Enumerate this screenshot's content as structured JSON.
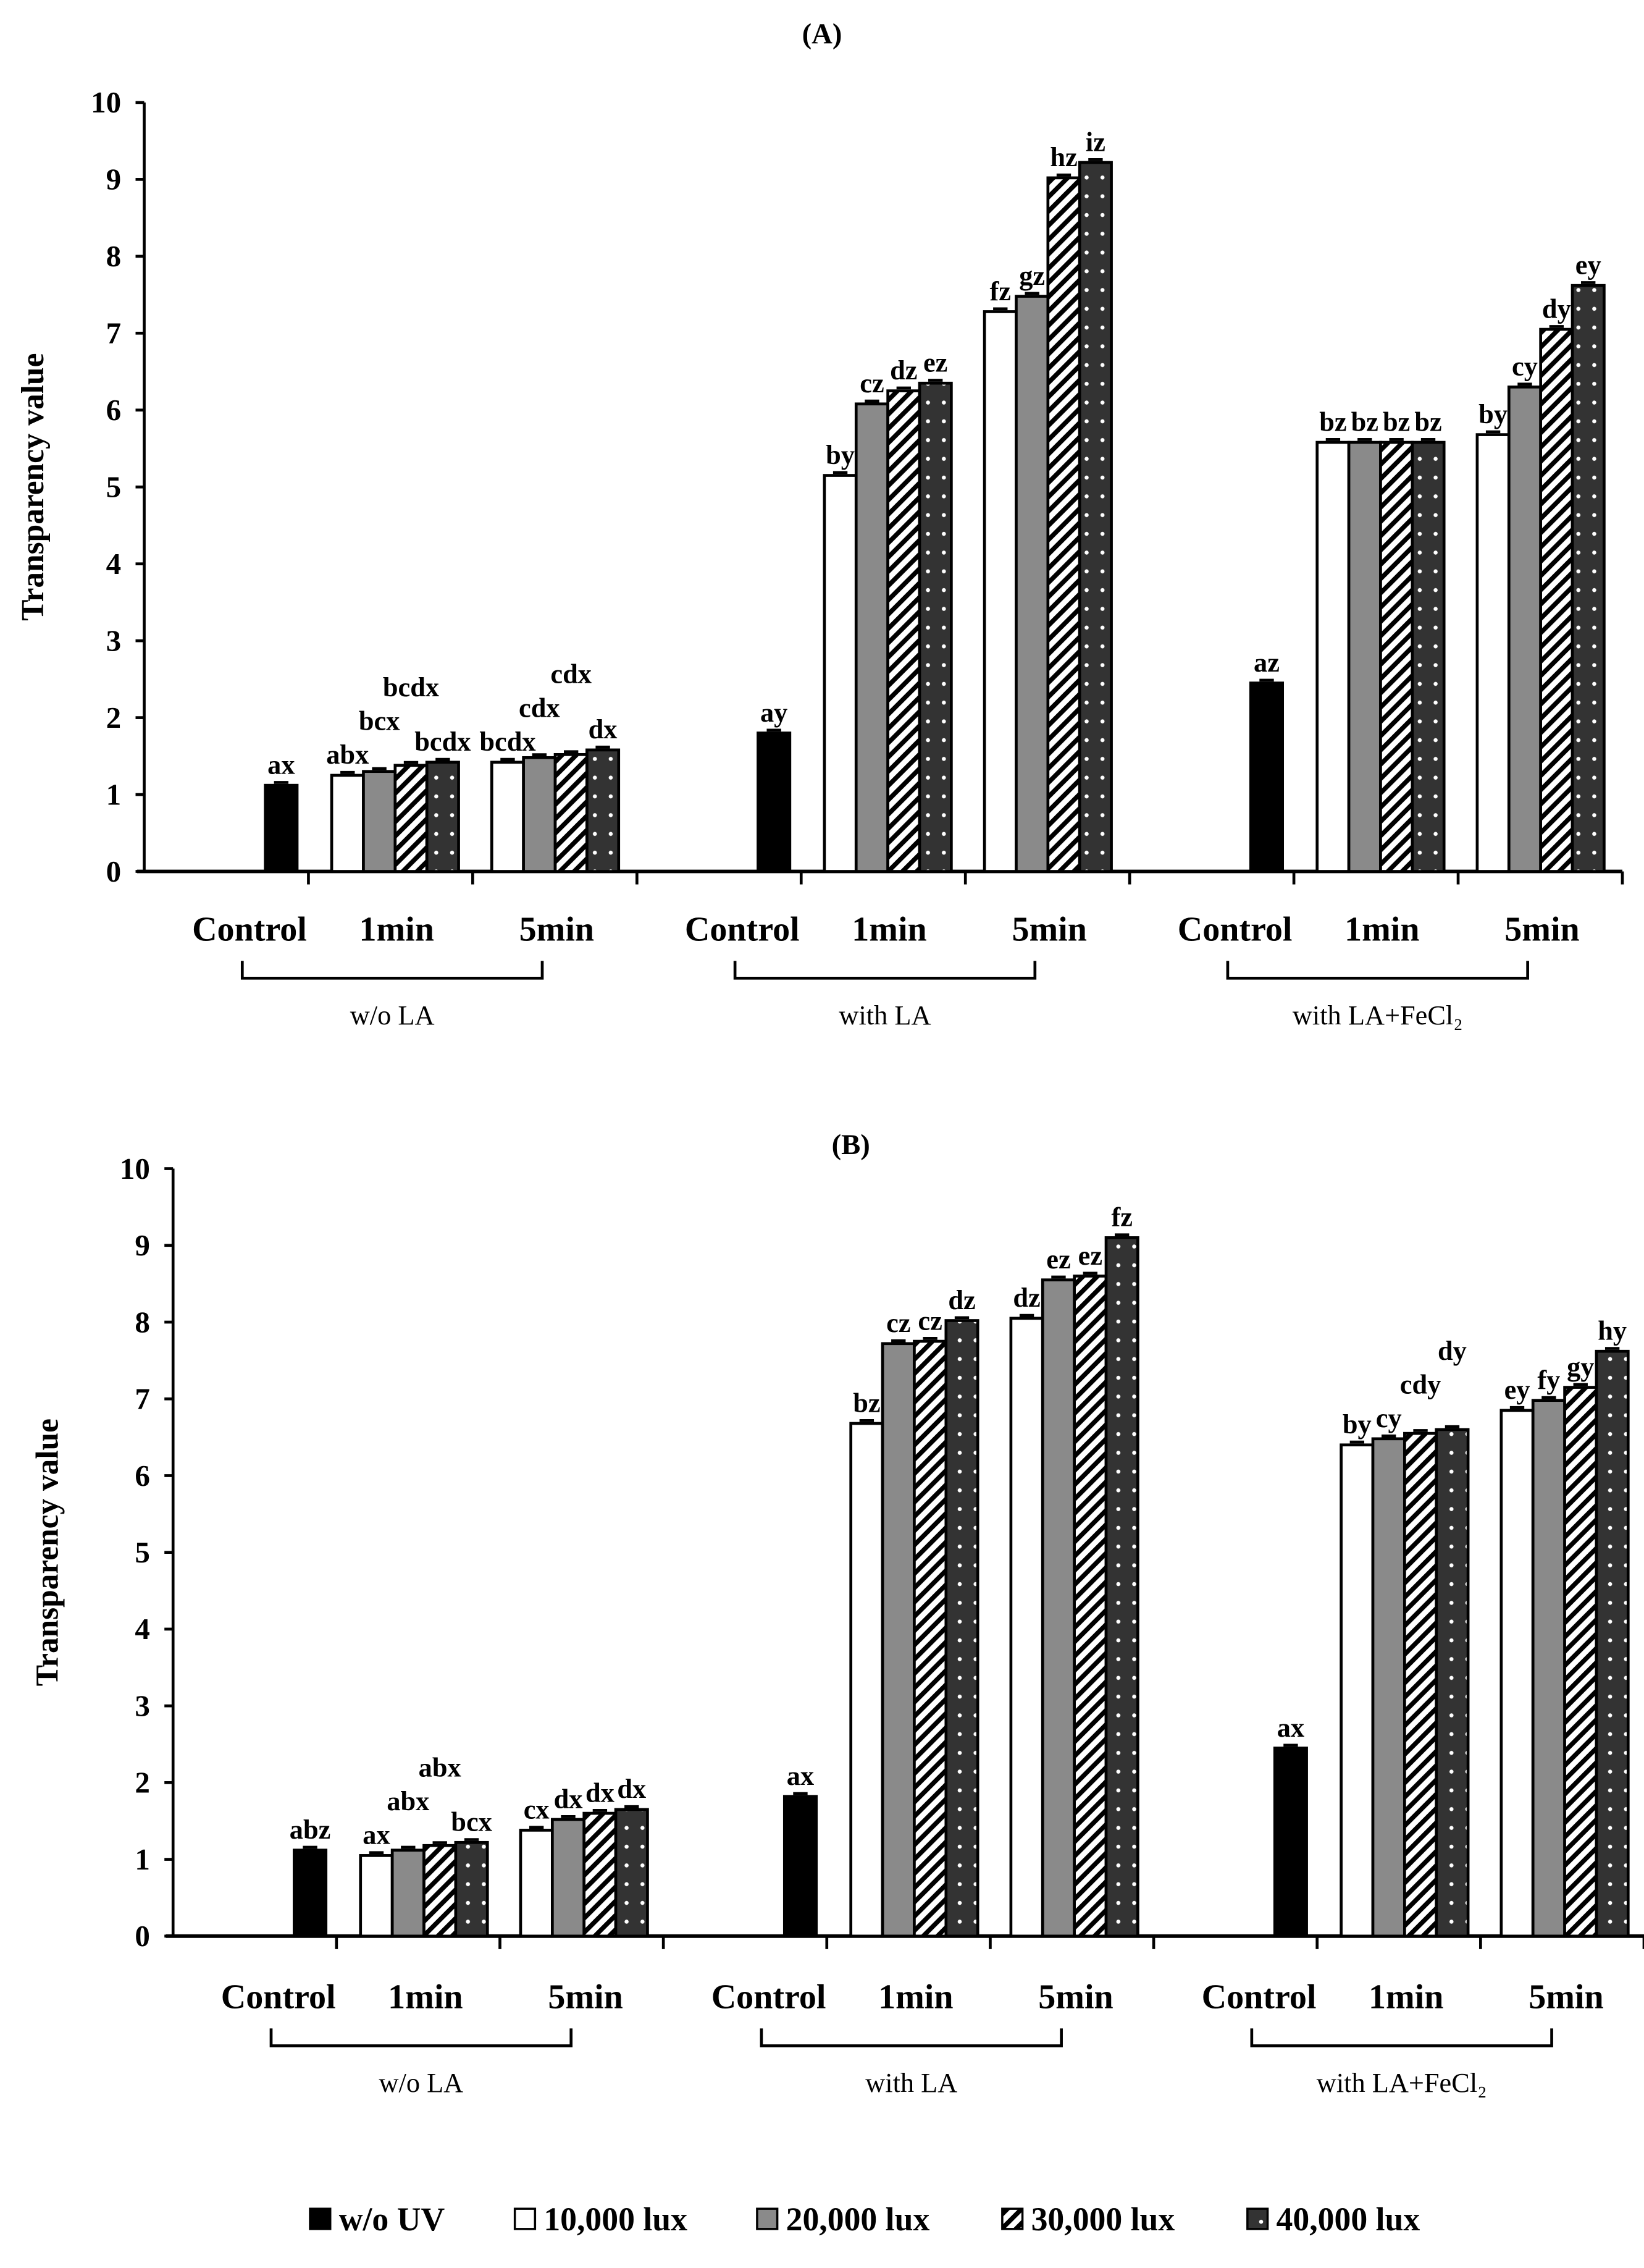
{
  "chart_data": [
    {
      "type": "bar",
      "title": "(A)",
      "ylabel": "Transparency value",
      "ylim": [
        0,
        10
      ],
      "yticks": [
        0,
        1,
        2,
        3,
        4,
        5,
        6,
        7,
        8,
        9,
        10
      ],
      "groups": [
        {
          "name": "w/o LA",
          "categories": [
            "Control",
            "1min",
            "5min"
          ],
          "control": {
            "value": 1.12,
            "label": "ax"
          },
          "1min": {
            "values": [
              1.25,
              1.3,
              1.38,
              1.42
            ],
            "labels": [
              "abx",
              "bcx",
              "bcdx",
              "bcdx"
            ]
          },
          "5min": {
            "values": [
              1.42,
              1.48,
              1.52,
              1.58
            ],
            "labels": [
              "bcdx",
              "cdx",
              "cdx",
              "dx"
            ]
          }
        },
        {
          "name": "with LA",
          "categories": [
            "Control",
            "1min",
            "5min"
          ],
          "control": {
            "value": 1.8,
            "label": "ay"
          },
          "1min": {
            "values": [
              5.15,
              6.08,
              6.25,
              6.35
            ],
            "labels": [
              "by",
              "cz",
              "dz",
              "ez"
            ]
          },
          "5min": {
            "values": [
              7.28,
              7.48,
              9.02,
              9.22
            ],
            "labels": [
              "fz",
              "gz",
              "hz",
              "iz"
            ]
          }
        },
        {
          "name": "with LA+FeCl₂",
          "categories": [
            "Control",
            "1min",
            "5min"
          ],
          "control": {
            "value": 2.45,
            "label": "az"
          },
          "1min": {
            "values": [
              5.58,
              5.58,
              5.58,
              5.58
            ],
            "labels": [
              "bz",
              "bz",
              "bz",
              "bz"
            ]
          },
          "5min": {
            "values": [
              5.68,
              6.3,
              7.05,
              7.62
            ],
            "labels": [
              "by",
              "cy",
              "dy",
              "ey"
            ]
          }
        }
      ]
    },
    {
      "type": "bar",
      "title": "(B)",
      "ylabel": "Transparency value",
      "ylim": [
        0,
        10
      ],
      "yticks": [
        0,
        1,
        2,
        3,
        4,
        5,
        6,
        7,
        8,
        9,
        10
      ],
      "groups": [
        {
          "name": "w/o LA",
          "categories": [
            "Control",
            "1min",
            "5min"
          ],
          "control": {
            "value": 1.12,
            "label": "abz"
          },
          "1min": {
            "values": [
              1.05,
              1.12,
              1.18,
              1.22
            ],
            "labels": [
              "ax",
              "abx",
              "abx",
              "bcx"
            ]
          },
          "5min": {
            "values": [
              1.38,
              1.52,
              1.6,
              1.65
            ],
            "labels": [
              "cx",
              "dx",
              "dx",
              "dx"
            ]
          }
        },
        {
          "name": "with LA",
          "categories": [
            "Control",
            "1min",
            "5min"
          ],
          "control": {
            "value": 1.82,
            "label": "ax"
          },
          "1min": {
            "values": [
              6.68,
              7.72,
              7.75,
              8.02
            ],
            "labels": [
              "bz",
              "cz",
              "cz",
              "dz"
            ]
          },
          "5min": {
            "values": [
              8.05,
              8.55,
              8.6,
              9.1
            ],
            "labels": [
              "dz",
              "ez",
              "ez",
              "fz"
            ]
          }
        },
        {
          "name": "with LA+FeCl₂",
          "categories": [
            "Control",
            "1min",
            "5min"
          ],
          "control": {
            "value": 2.45,
            "label": "ax"
          },
          "1min": {
            "values": [
              6.4,
              6.48,
              6.55,
              6.6
            ],
            "labels": [
              "by",
              "cy",
              "cdy",
              "dy"
            ]
          },
          "5min": {
            "values": [
              6.85,
              6.98,
              7.15,
              7.62
            ],
            "labels": [
              "ey",
              "fy",
              "gy",
              "hy"
            ]
          }
        }
      ]
    }
  ],
  "legend": [
    {
      "label": "w/o UV",
      "fill": "solid-black"
    },
    {
      "label": "10,000 lux",
      "fill": "white"
    },
    {
      "label": "20,000 lux",
      "fill": "gray"
    },
    {
      "label": "30,000 lux",
      "fill": "diagonal-hatch"
    },
    {
      "label": "40,000 lux",
      "fill": "dark-dotted"
    }
  ],
  "colors": {
    "black": "#000000",
    "gray": "#8a8a8a",
    "dark": "#333333",
    "white": "#ffffff"
  }
}
